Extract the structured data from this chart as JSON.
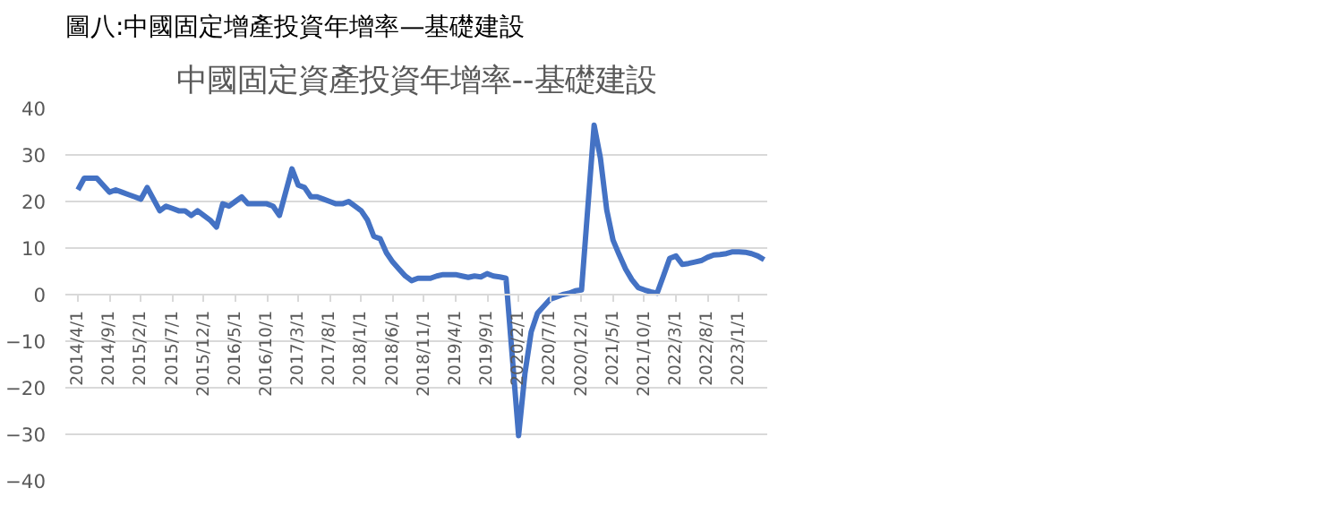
{
  "chart_data": {
    "type": "line",
    "title": "中國固定資產投資年增率--基礎建設",
    "annotations": [
      "圖八:中國固定增產投資年增率—基礎建設"
    ],
    "categories": [
      "2014/4/1",
      null,
      null,
      null,
      null,
      "2014/9/1",
      null,
      null,
      null,
      null,
      "2015/2/1",
      null,
      null,
      null,
      null,
      "2015/7/1",
      null,
      null,
      null,
      null,
      "2015/12/1",
      null,
      null,
      null,
      null,
      "2016/5/1",
      null,
      null,
      null,
      null,
      "2016/10/1",
      null,
      null,
      null,
      null,
      "2017/3/1",
      null,
      null,
      null,
      null,
      "2017/8/1",
      null,
      null,
      null,
      null,
      "2018/1/1",
      null,
      null,
      null,
      null,
      "2018/6/1",
      null,
      null,
      null,
      null,
      "2018/11/1",
      null,
      null,
      null,
      null,
      "2019/4/1",
      null,
      null,
      null,
      null,
      "2019/9/1",
      null,
      null,
      null,
      null,
      "2020/2/1",
      null,
      null,
      null,
      null,
      "2020/7/1",
      null,
      null,
      null,
      null,
      "2020/12/1",
      null,
      null,
      null,
      null,
      "2021/5/1",
      null,
      null,
      null,
      null,
      "2021/10/1",
      null,
      null,
      null,
      null,
      "2022/3/1",
      null,
      null,
      null,
      null,
      "2022/8/1",
      null,
      null,
      null,
      null,
      "2023/1/1",
      null,
      null,
      null,
      null
    ],
    "values": [
      22.5,
      25,
      25,
      25,
      23.5,
      22,
      22.5,
      22,
      21.5,
      21,
      20.5,
      23,
      20.5,
      18,
      19,
      18.5,
      18,
      18,
      17,
      18,
      17,
      16,
      14.5,
      19.5,
      19,
      20,
      21,
      19.5,
      19.5,
      19.5,
      19.5,
      19,
      17,
      22,
      27,
      23.5,
      23,
      21,
      21,
      20.5,
      20,
      19.5,
      19.5,
      20,
      19,
      18,
      16,
      12.5,
      12,
      9,
      7,
      5.5,
      4,
      3,
      3.5,
      3.5,
      3.5,
      4,
      4.3,
      4.3,
      4.3,
      4,
      3.7,
      4,
      3.8,
      4.5,
      4,
      3.8,
      3.5,
      -13.4,
      -30.3,
      -17,
      -8,
      -4,
      -2.5,
      -1,
      -0.5,
      0,
      0.3,
      0.8,
      1,
      18.7,
      36.4,
      29.3,
      18.2,
      11.7,
      8.5,
      5.5,
      3.2,
      1.5,
      1,
      0.6,
      0.3,
      4,
      7.8,
      8.3,
      6.5,
      6.7,
      7,
      7.3,
      8,
      8.5,
      8.6,
      8.8,
      9.2,
      9.2,
      9.1,
      8.8,
      8.3,
      7.5
    ],
    "color": "#4472c4",
    "ylim": [
      -40,
      40
    ],
    "yticks": [
      -40,
      -30,
      -20,
      -10,
      0,
      10,
      20,
      30,
      40
    ],
    "grid": "y"
  }
}
